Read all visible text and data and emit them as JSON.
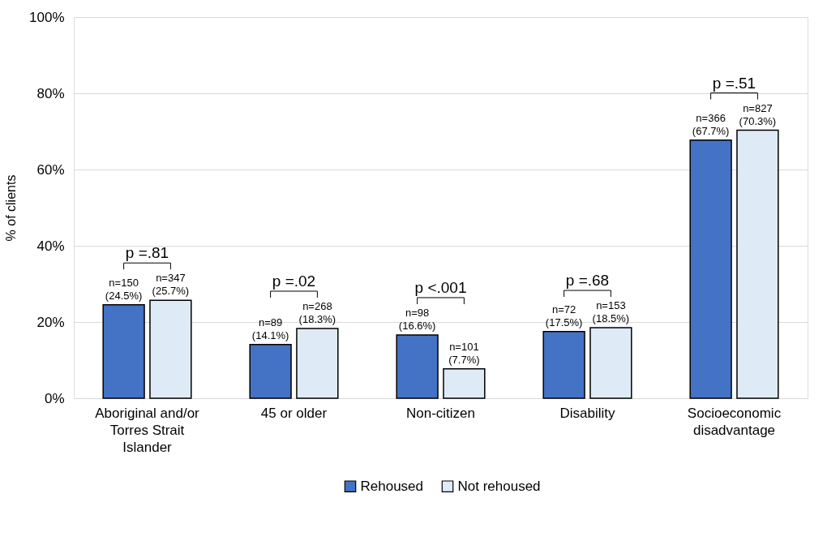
{
  "chart_data": {
    "type": "bar",
    "ylabel": "% of clients",
    "categories": [
      "Aboriginal and/or\nTorres Strait\nIslander",
      "45 or older",
      "Non-citizen",
      "Disability",
      "Socioeconomic\ndisadvantage"
    ],
    "series": [
      {
        "name": "Rehoused",
        "color": "#4472c4",
        "values": [
          24.5,
          14.1,
          16.6,
          17.5,
          67.7
        ],
        "value_labels": [
          "n=150\n(24.5%)",
          "n=89\n(14.1%)",
          "n=98\n(16.6%)",
          "n=72\n(17.5%)",
          "n=366\n(67.7%)"
        ]
      },
      {
        "name": "Not rehoused",
        "color": "#deebf7",
        "values": [
          25.7,
          18.3,
          7.7,
          18.5,
          70.3
        ],
        "value_labels": [
          "n=347\n(25.7%)",
          "n=268\n(18.3%)",
          "n=101\n(7.7%)",
          "n=153\n(18.5%)",
          "n=827\n(70.3%)"
        ]
      }
    ],
    "ylim": [
      0,
      100
    ],
    "yticks": [
      {
        "value": 0,
        "label": "0%"
      },
      {
        "value": 20,
        "label": "20%"
      },
      {
        "value": 40,
        "label": "40%"
      },
      {
        "value": 60,
        "label": "60%"
      },
      {
        "value": 80,
        "label": "80%"
      },
      {
        "value": 100,
        "label": "100%"
      }
    ],
    "annotations": [
      "p =.81",
      "p =.02",
      "p <.001",
      "p =.68",
      "p =.51"
    ],
    "grid": "y",
    "legend": "bottom"
  }
}
